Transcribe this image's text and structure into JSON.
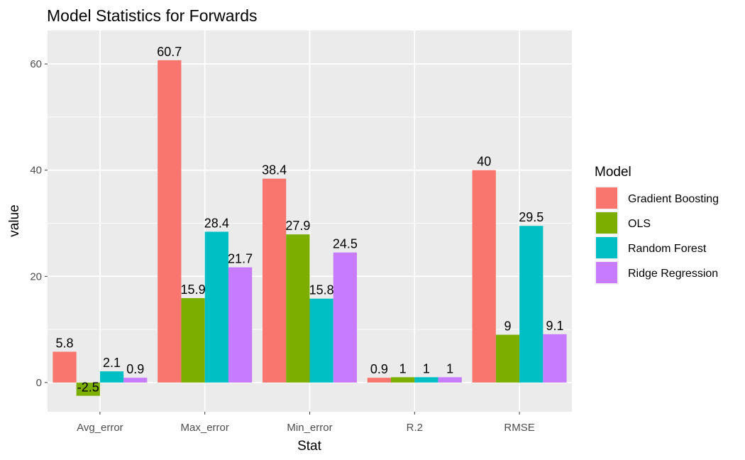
{
  "chart_data": {
    "type": "bar",
    "title": "Model Statistics for Forwards",
    "xlabel": "Stat",
    "ylabel": "value",
    "categories": [
      "Avg_error",
      "Max_error",
      "Min_error",
      "R.2",
      "RMSE"
    ],
    "series": [
      {
        "name": "Gradient Boosting",
        "color": "#F8766D",
        "values": [
          5.8,
          60.7,
          38.4,
          0.9,
          40
        ],
        "labels": [
          "5.8",
          "60.7",
          "38.4",
          "0.9",
          "40"
        ]
      },
      {
        "name": "OLS",
        "color": "#7CAE00",
        "values": [
          -2.5,
          15.9,
          27.9,
          1,
          9
        ],
        "labels": [
          "-2.5",
          "15.9",
          "27.9",
          "1",
          "9"
        ]
      },
      {
        "name": "Random Forest",
        "color": "#00BFC4",
        "values": [
          2.1,
          28.4,
          15.8,
          1,
          29.5
        ],
        "labels": [
          "2.1",
          "28.4",
          "15.8",
          "1",
          "29.5"
        ]
      },
      {
        "name": "Ridge Regression",
        "color": "#C77CFF",
        "values": [
          0.9,
          21.7,
          24.5,
          1,
          9.1
        ],
        "labels": [
          "0.9",
          "21.7",
          "24.5",
          "1",
          "9.1"
        ]
      }
    ],
    "yticks": [
      0,
      20,
      40,
      60
    ],
    "ylim": [
      -5.5,
      66.3
    ],
    "legend": {
      "title": "Model",
      "position": "right"
    },
    "grid": true,
    "panel_background": "#EBEBEB",
    "grid_color": "#FFFFFF"
  }
}
